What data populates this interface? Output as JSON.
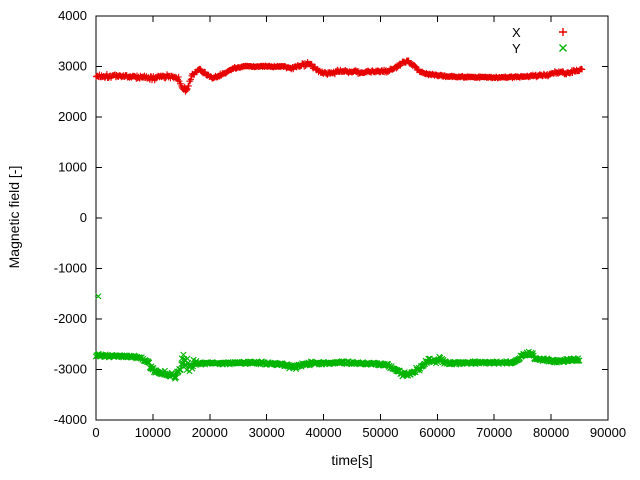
{
  "chart": {
    "title": ""
  },
  "chart_data": {
    "type": "scatter",
    "title": "",
    "xlabel": "time[s]",
    "ylabel": "Magnetic field [-]",
    "xlim": [
      0,
      90000
    ],
    "ylim": [
      -4000,
      4000
    ],
    "xtick_step": 10000,
    "ytick_step": 1000,
    "grid": false,
    "legend_position": "top-right-inside",
    "background": "#ffffff",
    "axis_color": "#000000",
    "sample_step": 120,
    "series": [
      {
        "name": "X",
        "color": "#e60000",
        "marker": "plus",
        "trend": [
          [
            0,
            2810,
            55
          ],
          [
            4000,
            2815,
            55
          ],
          [
            8000,
            2790,
            65
          ],
          [
            9500,
            2760,
            65
          ],
          [
            11000,
            2800,
            55
          ],
          [
            13000,
            2810,
            55
          ],
          [
            14500,
            2770,
            60
          ],
          [
            15200,
            2560,
            110
          ],
          [
            16000,
            2520,
            110
          ],
          [
            16600,
            2720,
            90
          ],
          [
            17300,
            2900,
            70
          ],
          [
            18200,
            2940,
            55
          ],
          [
            19200,
            2860,
            50
          ],
          [
            20500,
            2770,
            50
          ],
          [
            21500,
            2800,
            45
          ],
          [
            23000,
            2900,
            40
          ],
          [
            24500,
            2975,
            30
          ],
          [
            26000,
            3000,
            22
          ],
          [
            33000,
            3000,
            22
          ],
          [
            34500,
            2960,
            40
          ],
          [
            36000,
            3030,
            55
          ],
          [
            37200,
            3055,
            65
          ],
          [
            38500,
            2990,
            65
          ],
          [
            39800,
            2880,
            55
          ],
          [
            41000,
            2865,
            50
          ],
          [
            43000,
            2915,
            50
          ],
          [
            45000,
            2895,
            45
          ],
          [
            47000,
            2880,
            45
          ],
          [
            49000,
            2900,
            45
          ],
          [
            51000,
            2915,
            45
          ],
          [
            52500,
            2960,
            40
          ],
          [
            54000,
            3090,
            50
          ],
          [
            54800,
            3120,
            50
          ],
          [
            55800,
            3030,
            60
          ],
          [
            57000,
            2900,
            60
          ],
          [
            58500,
            2855,
            50
          ],
          [
            60000,
            2830,
            40
          ],
          [
            62000,
            2805,
            30
          ],
          [
            65000,
            2790,
            25
          ],
          [
            70000,
            2785,
            25
          ],
          [
            74000,
            2795,
            28
          ],
          [
            77000,
            2815,
            40
          ],
          [
            79500,
            2845,
            50
          ],
          [
            81500,
            2890,
            55
          ],
          [
            83000,
            2870,
            55
          ],
          [
            84500,
            2915,
            45
          ],
          [
            85500,
            2950,
            35
          ]
        ],
        "outliers": []
      },
      {
        "name": "Y",
        "color": "#00b400",
        "marker": "cross",
        "trend": [
          [
            0,
            -2725,
            45
          ],
          [
            3000,
            -2730,
            45
          ],
          [
            6000,
            -2745,
            50
          ],
          [
            8000,
            -2765,
            55
          ],
          [
            9000,
            -2830,
            65
          ],
          [
            10000,
            -3010,
            75
          ],
          [
            11000,
            -3070,
            70
          ],
          [
            12500,
            -3090,
            80
          ],
          [
            14000,
            -3140,
            95
          ],
          [
            15000,
            -2850,
            330
          ],
          [
            16000,
            -2820,
            340
          ],
          [
            16700,
            -2900,
            130
          ],
          [
            17800,
            -2880,
            55
          ],
          [
            20000,
            -2870,
            42
          ],
          [
            24000,
            -2875,
            40
          ],
          [
            28000,
            -2865,
            40
          ],
          [
            31000,
            -2880,
            45
          ],
          [
            33500,
            -2925,
            60
          ],
          [
            35000,
            -2945,
            70
          ],
          [
            36500,
            -2905,
            55
          ],
          [
            38000,
            -2875,
            48
          ],
          [
            41000,
            -2870,
            45
          ],
          [
            44000,
            -2865,
            45
          ],
          [
            47000,
            -2880,
            42
          ],
          [
            50000,
            -2890,
            45
          ],
          [
            52000,
            -2945,
            55
          ],
          [
            53500,
            -3070,
            75
          ],
          [
            54800,
            -3120,
            70
          ],
          [
            56000,
            -3040,
            70
          ],
          [
            57200,
            -2935,
            60
          ],
          [
            58500,
            -2830,
            100
          ],
          [
            60000,
            -2800,
            110
          ],
          [
            61200,
            -2860,
            70
          ],
          [
            62500,
            -2870,
            45
          ],
          [
            66000,
            -2865,
            40
          ],
          [
            70000,
            -2860,
            40
          ],
          [
            73500,
            -2850,
            45
          ],
          [
            75500,
            -2695,
            80
          ],
          [
            76500,
            -2700,
            70
          ],
          [
            77500,
            -2790,
            55
          ],
          [
            79000,
            -2820,
            48
          ],
          [
            81000,
            -2835,
            55
          ],
          [
            83000,
            -2820,
            55
          ],
          [
            85000,
            -2800,
            45
          ]
        ],
        "outliers": [
          [
            400,
            -1550
          ]
        ]
      }
    ]
  }
}
